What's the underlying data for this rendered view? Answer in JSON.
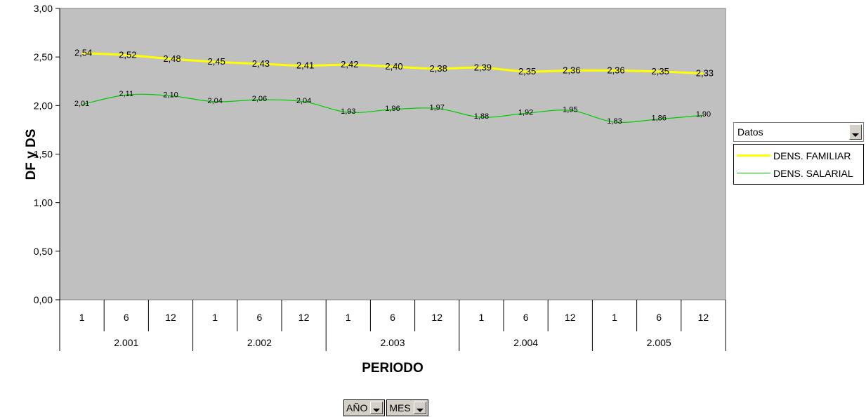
{
  "chart_data": {
    "type": "line",
    "ylabel": "DF y DS",
    "xlabel": "PERIODO",
    "ylim": [
      0,
      3
    ],
    "yticks": [
      "0,00",
      "0,50",
      "1,00",
      "1,50",
      "2,00",
      "2,50",
      "3,00"
    ],
    "categories": [
      {
        "year": "2.001",
        "month": "1"
      },
      {
        "year": "2.001",
        "month": "6"
      },
      {
        "year": "2.001",
        "month": "12"
      },
      {
        "year": "2.002",
        "month": "1"
      },
      {
        "year": "2.002",
        "month": "6"
      },
      {
        "year": "2.002",
        "month": "12"
      },
      {
        "year": "2.003",
        "month": "1"
      },
      {
        "year": "2.003",
        "month": "6"
      },
      {
        "year": "2.003",
        "month": "12"
      },
      {
        "year": "2.004",
        "month": "1"
      },
      {
        "year": "2.004",
        "month": "6"
      },
      {
        "year": "2.004",
        "month": "12"
      },
      {
        "year": "2.005",
        "month": "1"
      },
      {
        "year": "2.005",
        "month": "6"
      },
      {
        "year": "2.005",
        "month": "12"
      }
    ],
    "years": [
      "2.001",
      "2.002",
      "2.003",
      "2.004",
      "2.005"
    ],
    "series": [
      {
        "name": "DENS. FAMILIAR",
        "color": "#ffff00",
        "values": [
          2.54,
          2.52,
          2.48,
          2.45,
          2.43,
          2.41,
          2.42,
          2.4,
          2.38,
          2.39,
          2.35,
          2.36,
          2.36,
          2.35,
          2.33
        ],
        "labels": [
          "2,54",
          "2,52",
          "2,48",
          "2,45",
          "2,43",
          "2,41",
          "2,42",
          "2,40",
          "2,38",
          "2,39",
          "2,35",
          "2,36",
          "2,36",
          "2,35",
          "2,33"
        ]
      },
      {
        "name": "DENS. SALARIAL",
        "color": "#00cc00",
        "values": [
          2.01,
          2.11,
          2.1,
          2.04,
          2.06,
          2.04,
          1.93,
          1.96,
          1.97,
          1.88,
          1.92,
          1.95,
          1.83,
          1.86,
          1.9
        ],
        "labels": [
          "2,01",
          "2,11",
          "2,10",
          "2,04",
          "2,06",
          "2,04",
          "1,93",
          "1,96",
          "1,97",
          "1,88",
          "1,92",
          "1,95",
          "1,83",
          "1,86",
          "1,90"
        ]
      }
    ],
    "plot_background": "#c0c0c0",
    "grid": false,
    "legend_position": "right"
  },
  "legend": {
    "title": "Datos",
    "items": [
      {
        "label": "DENS. FAMILIAR",
        "color": "#ffff00"
      },
      {
        "label": "DENS. SALARIAL",
        "color": "#00cc00"
      }
    ]
  },
  "fields": {
    "year": "AÑO",
    "month": "MES"
  }
}
